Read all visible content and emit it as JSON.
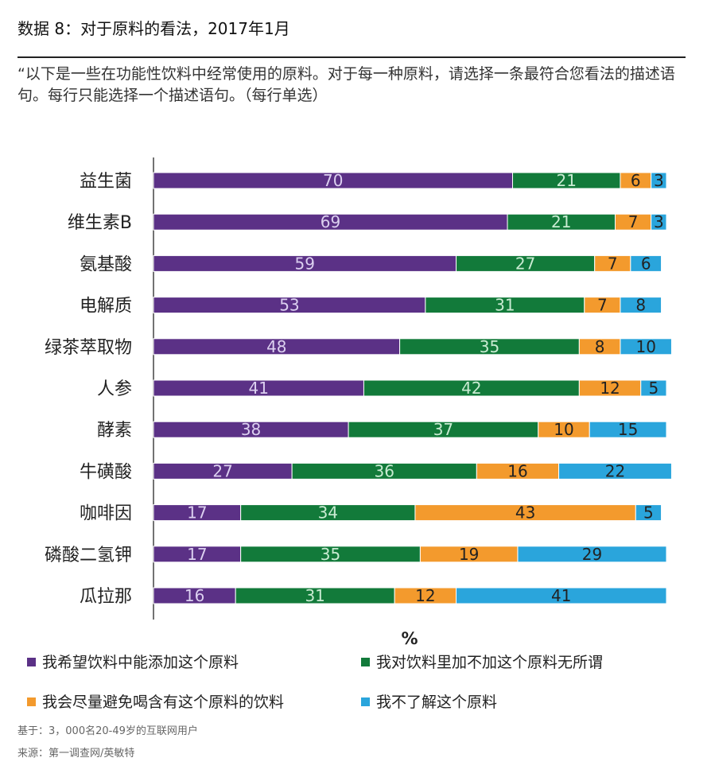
{
  "header": {
    "title": "数据 8：对于原料的看法，2017年1月",
    "question": "“以下是一些在功能性饮料中经常使用的原料。对于每一种原料，请选择一条最符合您看法的描述语句。每行只能选择一个描述语句。（每行单选）"
  },
  "footer": {
    "base": "基于：3，000名20-49岁的互联网用户",
    "source": "来源：第一调查网/英敏特"
  },
  "chart_data": {
    "type": "bar",
    "orientation": "horizontal",
    "stacked": true,
    "xlabel": "%",
    "categories": [
      "益生菌",
      "维生素B",
      "氨基酸",
      "电解质",
      "绿茶萃取物",
      "人参",
      "酵素",
      "牛磺酸",
      "咖啡因",
      "磷酸二氢钾",
      "瓜拉那"
    ],
    "series": [
      {
        "name": "我希望饮料中能添加这个原料",
        "color": "#5b3186",
        "label_color": "#dcd0f0",
        "values": [
          70,
          69,
          59,
          53,
          48,
          41,
          38,
          27,
          17,
          17,
          16
        ]
      },
      {
        "name": "我对饮料里加不加这个原料无所谓",
        "color": "#127a3a",
        "label_color": "#c9ebd2",
        "values": [
          21,
          21,
          27,
          31,
          35,
          42,
          37,
          36,
          34,
          35,
          31
        ]
      },
      {
        "name": "我会尽量避免喝含有这个原料的饮料",
        "color": "#f39a2d",
        "label_color": "#222222",
        "values": [
          6,
          7,
          7,
          7,
          8,
          12,
          10,
          16,
          43,
          19,
          12
        ]
      },
      {
        "name": "我不了解这个原料",
        "color": "#2aa5dc",
        "label_color": "#222222",
        "values": [
          3,
          3,
          6,
          8,
          10,
          5,
          15,
          22,
          5,
          29,
          41
        ]
      }
    ]
  }
}
